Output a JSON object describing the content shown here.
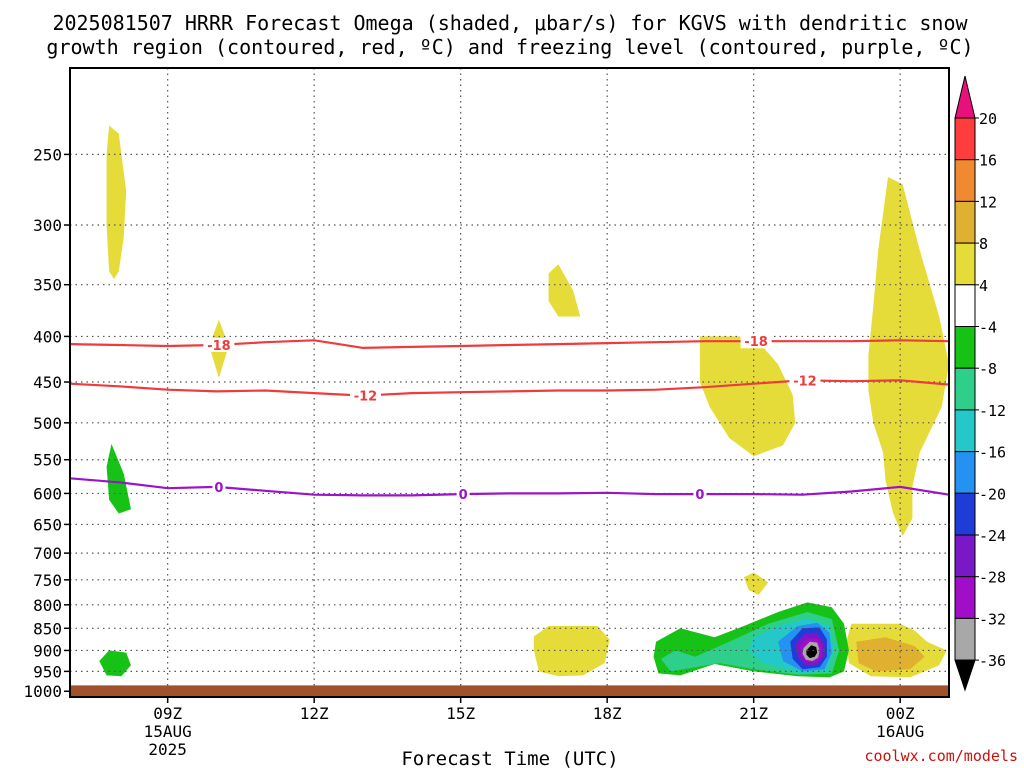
{
  "chart_data": {
    "type": "heatmap",
    "title": {
      "line1": "2025081507 HRRR Forecast Omega (shaded, μbar/s) for KGVS with dendritic snow",
      "line2": "growth region (contoured, red, ºC) and freezing level (contoured, purple, ºC)"
    },
    "xlabel": "Forecast Time (UTC)",
    "credit": "coolwx.com/models",
    "x_range_hours": [
      7,
      25
    ],
    "x_ticks": [
      {
        "hour": 9,
        "label": "09Z",
        "sub1": "15AUG",
        "sub2": "2025"
      },
      {
        "hour": 12,
        "label": "12Z",
        "sub1": "",
        "sub2": ""
      },
      {
        "hour": 15,
        "label": "15Z",
        "sub1": "",
        "sub2": ""
      },
      {
        "hour": 18,
        "label": "18Z",
        "sub1": "",
        "sub2": ""
      },
      {
        "hour": 21,
        "label": "21Z",
        "sub1": "",
        "sub2": ""
      },
      {
        "hour": 24,
        "label": "00Z",
        "sub1": "16AUG",
        "sub2": ""
      }
    ],
    "y_scale": "log-pressure (hPa), reversed",
    "y_range_hpa": [
      200,
      1015
    ],
    "y_ticks": [
      250,
      300,
      350,
      400,
      450,
      500,
      550,
      600,
      650,
      700,
      750,
      800,
      850,
      900,
      950,
      1000
    ],
    "grid": "dotted",
    "ground": {
      "color": "#a0522d",
      "top_hpa": 985
    },
    "colorbar": {
      "levels": [
        {
          "label": "20",
          "color": "#ff3d3d"
        },
        {
          "label": "16",
          "color": "#f08a30"
        },
        {
          "label": "12",
          "color": "#e0b030"
        },
        {
          "label": "8",
          "color": "#e5dc3a"
        },
        {
          "label": "4",
          "color": "#ffffff"
        },
        {
          "label": "-4",
          "color": "#17c217"
        },
        {
          "label": "-8",
          "color": "#2ecf8a"
        },
        {
          "label": "-12",
          "color": "#25c8c8"
        },
        {
          "label": "-16",
          "color": "#2492f0"
        },
        {
          "label": "-20",
          "color": "#1e3cd8"
        },
        {
          "label": "-24",
          "color": "#7a18c8"
        },
        {
          "label": "-28",
          "color": "#a00ec8"
        },
        {
          "label": "-32",
          "color": "#a8a8a8"
        },
        {
          "label": "-36",
          "color": "#000000"
        }
      ],
      "top_triangle_color": "#e8107a",
      "bottom_triangle_color": "#000000"
    },
    "contours": [
      {
        "name": "-18",
        "color": "#ee3b3b",
        "points": [
          [
            7,
            408
          ],
          [
            8,
            409
          ],
          [
            9,
            410
          ],
          [
            10,
            409
          ],
          [
            11,
            406
          ],
          [
            12,
            404
          ],
          [
            12.5,
            408
          ],
          [
            13,
            412
          ],
          [
            14,
            411
          ],
          [
            15,
            410
          ],
          [
            16,
            409
          ],
          [
            17,
            408
          ],
          [
            18,
            407
          ],
          [
            19,
            406
          ],
          [
            20,
            405
          ],
          [
            21,
            405
          ],
          [
            22,
            405
          ],
          [
            23,
            405
          ],
          [
            24,
            404
          ],
          [
            25,
            405
          ]
        ],
        "labels": [
          {
            "hour": 10.05,
            "text": "-18"
          },
          {
            "hour": 21.05,
            "text": "-18"
          }
        ]
      },
      {
        "name": "-12",
        "color": "#ee3b3b",
        "points": [
          [
            7,
            452
          ],
          [
            8,
            455
          ],
          [
            9,
            459
          ],
          [
            10,
            461
          ],
          [
            11,
            460
          ],
          [
            12,
            463
          ],
          [
            13,
            466
          ],
          [
            14,
            463
          ],
          [
            15,
            462
          ],
          [
            16,
            461
          ],
          [
            17,
            460
          ],
          [
            18,
            460
          ],
          [
            19,
            459
          ],
          [
            20,
            456
          ],
          [
            21,
            452
          ],
          [
            22,
            448
          ],
          [
            23,
            449
          ],
          [
            24,
            448
          ],
          [
            25,
            453
          ]
        ],
        "labels": [
          {
            "hour": 13.05,
            "text": "-12"
          },
          {
            "hour": 22.05,
            "text": "-12"
          }
        ]
      },
      {
        "name": "0",
        "color": "#9a14c8",
        "points": [
          [
            7,
            577
          ],
          [
            8,
            583
          ],
          [
            9,
            592
          ],
          [
            10,
            590
          ],
          [
            11,
            596
          ],
          [
            12,
            602
          ],
          [
            13,
            603
          ],
          [
            14,
            603
          ],
          [
            15,
            601
          ],
          [
            16,
            600
          ],
          [
            17,
            600
          ],
          [
            18,
            599
          ],
          [
            19,
            601
          ],
          [
            20,
            601
          ],
          [
            21,
            601
          ],
          [
            22,
            602
          ],
          [
            23,
            597
          ],
          [
            24,
            590
          ],
          [
            25,
            602
          ]
        ],
        "labels": [
          {
            "hour": 10.05,
            "text": "0"
          },
          {
            "hour": 15.05,
            "text": "0"
          },
          {
            "hour": 19.9,
            "text": "0"
          }
        ]
      }
    ],
    "regions": [
      {
        "color": "#e5dc3a",
        "points": [
          [
            7.8,
            232
          ],
          [
            8.0,
            237
          ],
          [
            8.15,
            275
          ],
          [
            8.1,
            310
          ],
          [
            8.0,
            338
          ],
          [
            7.9,
            345
          ],
          [
            7.8,
            338
          ],
          [
            7.75,
            300
          ],
          [
            7.75,
            250
          ]
        ]
      },
      {
        "color": "#e5dc3a",
        "points": [
          [
            10.05,
            383
          ],
          [
            10.25,
            410
          ],
          [
            10.05,
            445
          ],
          [
            9.85,
            410
          ]
        ]
      },
      {
        "color": "#e5dc3a",
        "points": [
          [
            16.8,
            340
          ],
          [
            17.0,
            332
          ],
          [
            17.3,
            355
          ],
          [
            17.45,
            380
          ],
          [
            17.0,
            380
          ],
          [
            16.8,
            365
          ]
        ]
      },
      {
        "color": "#e5dc3a",
        "points": [
          [
            19.9,
            400
          ],
          [
            21.0,
            400
          ],
          [
            21.5,
            430
          ],
          [
            21.8,
            465
          ],
          [
            21.85,
            500
          ],
          [
            21.6,
            530
          ],
          [
            21.0,
            545
          ],
          [
            20.5,
            520
          ],
          [
            20.1,
            480
          ],
          [
            19.9,
            450
          ]
        ]
      },
      {
        "color": "#e5dc3a",
        "points": [
          [
            23.75,
            265
          ],
          [
            24.05,
            270
          ],
          [
            24.4,
            320
          ],
          [
            24.8,
            380
          ],
          [
            25.0,
            430
          ],
          [
            24.85,
            480
          ],
          [
            24.4,
            540
          ],
          [
            24.25,
            590
          ],
          [
            24.25,
            640
          ],
          [
            24.05,
            670
          ],
          [
            23.85,
            630
          ],
          [
            23.7,
            580
          ],
          [
            23.65,
            540
          ],
          [
            23.45,
            500
          ],
          [
            23.35,
            460
          ],
          [
            23.35,
            420
          ],
          [
            23.45,
            370
          ],
          [
            23.55,
            320
          ]
        ]
      },
      {
        "color": "#e5dc3a",
        "points": [
          [
            20.8,
            745
          ],
          [
            21.0,
            736
          ],
          [
            21.3,
            755
          ],
          [
            21.1,
            780
          ],
          [
            20.9,
            770
          ]
        ]
      },
      {
        "color": "#e5dc3a",
        "points": [
          [
            16.5,
            868
          ],
          [
            16.8,
            845
          ],
          [
            17.8,
            845
          ],
          [
            18.05,
            875
          ],
          [
            17.95,
            930
          ],
          [
            17.5,
            960
          ],
          [
            17.0,
            962
          ],
          [
            16.6,
            950
          ],
          [
            16.5,
            900
          ]
        ]
      },
      {
        "color": "#e5dc3a",
        "points": [
          [
            23.0,
            840
          ],
          [
            24.0,
            840
          ],
          [
            24.3,
            855
          ],
          [
            24.55,
            880
          ],
          [
            24.95,
            900
          ],
          [
            24.8,
            935
          ],
          [
            24.2,
            965
          ],
          [
            23.4,
            962
          ],
          [
            22.95,
            930
          ],
          [
            22.9,
            880
          ]
        ]
      },
      {
        "color": "#e0b030",
        "points": [
          [
            23.1,
            880
          ],
          [
            23.7,
            870
          ],
          [
            24.3,
            890
          ],
          [
            24.5,
            915
          ],
          [
            24.2,
            945
          ],
          [
            23.5,
            950
          ],
          [
            23.15,
            930
          ]
        ]
      },
      {
        "color": "#17c217",
        "points": [
          [
            7.85,
            528
          ],
          [
            8.1,
            570
          ],
          [
            8.25,
            625
          ],
          [
            8.0,
            632
          ],
          [
            7.8,
            610
          ],
          [
            7.75,
            560
          ]
        ]
      },
      {
        "color": "#17c217",
        "points": [
          [
            7.6,
            925
          ],
          [
            7.8,
            900
          ],
          [
            8.15,
            905
          ],
          [
            8.25,
            935
          ],
          [
            8.05,
            962
          ],
          [
            7.75,
            960
          ]
        ]
      },
      {
        "color": "#17c217",
        "points": [
          [
            19.0,
            880
          ],
          [
            19.5,
            850
          ],
          [
            20.2,
            870
          ],
          [
            20.8,
            845
          ],
          [
            21.5,
            815
          ],
          [
            22.1,
            795
          ],
          [
            22.6,
            805
          ],
          [
            22.85,
            840
          ],
          [
            22.95,
            900
          ],
          [
            22.85,
            950
          ],
          [
            22.55,
            965
          ],
          [
            21.9,
            962
          ],
          [
            21.0,
            950
          ],
          [
            20.2,
            932
          ],
          [
            19.5,
            960
          ],
          [
            19.05,
            955
          ],
          [
            18.95,
            915
          ]
        ]
      },
      {
        "color": "#2ecf8a",
        "points": [
          [
            19.1,
            920
          ],
          [
            19.4,
            900
          ],
          [
            19.8,
            915
          ],
          [
            20.5,
            880
          ],
          [
            21.3,
            840
          ],
          [
            22.1,
            815
          ],
          [
            22.6,
            830
          ],
          [
            22.75,
            900
          ],
          [
            22.6,
            955
          ],
          [
            21.9,
            958
          ],
          [
            21.0,
            945
          ],
          [
            20.3,
            930
          ],
          [
            19.8,
            940
          ],
          [
            19.3,
            950
          ]
        ]
      },
      {
        "color": "#25c8c8",
        "points": [
          [
            21.0,
            870
          ],
          [
            21.5,
            845
          ],
          [
            22.1,
            828
          ],
          [
            22.55,
            845
          ],
          [
            22.65,
            900
          ],
          [
            22.5,
            950
          ],
          [
            22.0,
            955
          ],
          [
            21.2,
            930
          ],
          [
            20.9,
            900
          ]
        ]
      },
      {
        "color": "#2492f0",
        "points": [
          [
            21.5,
            880
          ],
          [
            21.9,
            845
          ],
          [
            22.3,
            838
          ],
          [
            22.55,
            860
          ],
          [
            22.6,
            905
          ],
          [
            22.45,
            945
          ],
          [
            22.0,
            950
          ],
          [
            21.6,
            925
          ]
        ]
      },
      {
        "color": "#1e3cd8",
        "points": [
          [
            21.75,
            880
          ],
          [
            22.0,
            850
          ],
          [
            22.35,
            848
          ],
          [
            22.5,
            875
          ],
          [
            22.5,
            915
          ],
          [
            22.35,
            940
          ],
          [
            22.0,
            945
          ],
          [
            21.8,
            920
          ]
        ]
      },
      {
        "color": "#7a18c8",
        "points": [
          [
            21.85,
            885
          ],
          [
            22.05,
            862
          ],
          [
            22.3,
            860
          ],
          [
            22.45,
            885
          ],
          [
            22.45,
            915
          ],
          [
            22.3,
            935
          ],
          [
            22.05,
            935
          ],
          [
            21.9,
            915
          ]
        ]
      },
      {
        "color": "#a00ec8",
        "points": [
          [
            21.95,
            890
          ],
          [
            22.1,
            872
          ],
          [
            22.3,
            872
          ],
          [
            22.4,
            890
          ],
          [
            22.4,
            915
          ],
          [
            22.28,
            928
          ],
          [
            22.08,
            928
          ],
          [
            21.97,
            912
          ]
        ]
      },
      {
        "color": "#a8a8a8",
        "points": [
          [
            22.02,
            895
          ],
          [
            22.15,
            880
          ],
          [
            22.3,
            882
          ],
          [
            22.35,
            900
          ],
          [
            22.32,
            917
          ],
          [
            22.2,
            925
          ],
          [
            22.07,
            922
          ],
          [
            22.0,
            908
          ]
        ]
      },
      {
        "color": "#000000",
        "points": [
          [
            22.08,
            900
          ],
          [
            22.18,
            888
          ],
          [
            22.28,
            892
          ],
          [
            22.3,
            905
          ],
          [
            22.25,
            915
          ],
          [
            22.15,
            918
          ],
          [
            22.08,
            910
          ]
        ]
      }
    ]
  }
}
